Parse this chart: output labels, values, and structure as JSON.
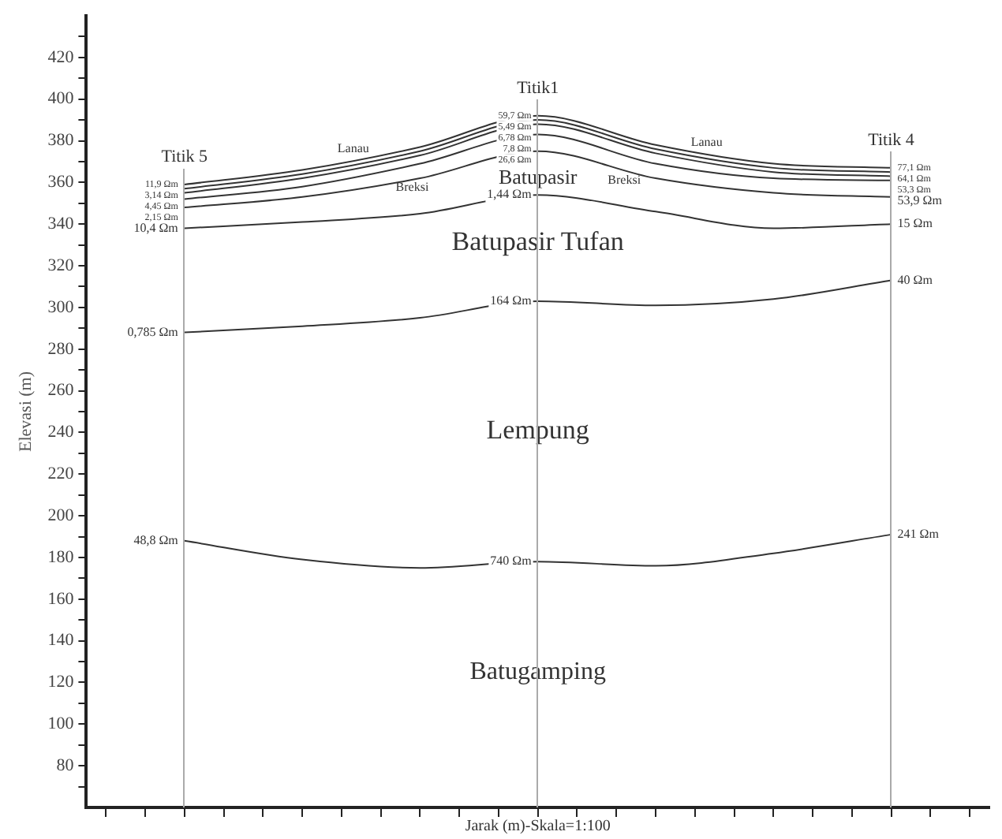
{
  "chart_data": {
    "type": "line",
    "xlabel": "Jarak (m)-Skala=1:100",
    "ylabel": "Elevasi (m)",
    "categories": [
      null,
      null,
      null,
      null,
      null,
      null,
      null,
      null,
      null,
      null,
      null,
      null,
      null,
      null,
      null,
      null,
      null,
      null,
      null,
      null,
      null,
      null,
      null
    ],
    "series": [
      {
        "color": "#333333",
        "values": [
          null,
          null,
          359,
          null,
          null,
          366,
          null,
          null,
          377,
          null,
          null,
          392,
          null,
          null,
          378,
          null,
          null,
          369,
          null,
          null,
          367,
          null,
          null
        ]
      },
      {
        "color": "#333333",
        "values": [
          null,
          null,
          357,
          null,
          null,
          364,
          null,
          null,
          375,
          null,
          null,
          390,
          null,
          null,
          376,
          null,
          null,
          367,
          null,
          null,
          365,
          null,
          null
        ]
      },
      {
        "color": "#333333",
        "values": [
          null,
          null,
          355,
          null,
          null,
          362,
          null,
          null,
          373,
          null,
          null,
          388,
          null,
          null,
          374,
          null,
          null,
          365,
          null,
          null,
          363,
          null,
          null
        ]
      },
      {
        "color": "#333333",
        "values": [
          null,
          null,
          352,
          null,
          null,
          358,
          null,
          null,
          369,
          null,
          null,
          383,
          null,
          null,
          369,
          null,
          null,
          362,
          null,
          null,
          361,
          null,
          null
        ]
      },
      {
        "color": "#333333",
        "values": [
          null,
          null,
          348,
          null,
          null,
          353,
          null,
          null,
          362,
          null,
          null,
          375,
          null,
          null,
          362,
          null,
          null,
          355,
          null,
          null,
          353,
          null,
          null
        ]
      },
      {
        "color": "#333333",
        "values": [
          null,
          null,
          338,
          null,
          null,
          341,
          null,
          null,
          345,
          null,
          null,
          354,
          null,
          null,
          346,
          null,
          null,
          338,
          null,
          null,
          340,
          null,
          null
        ]
      },
      {
        "color": "#333333",
        "values": [
          null,
          null,
          288,
          null,
          null,
          291,
          null,
          null,
          295,
          null,
          null,
          303,
          null,
          null,
          301,
          null,
          null,
          304,
          null,
          null,
          313,
          null,
          null
        ]
      },
      {
        "color": "#333333",
        "values": [
          null,
          null,
          188,
          null,
          null,
          179,
          null,
          null,
          175,
          null,
          null,
          178,
          null,
          null,
          176,
          null,
          null,
          182,
          null,
          null,
          191,
          null,
          null
        ]
      }
    ],
    "annotations": [
      "Titik 5",
      "Titik1",
      "Titik 4",
      "Lanau",
      "Breksi",
      "Lanau",
      "Breksi",
      "Batupasir",
      "Batupasir Tufan",
      "Lempung",
      "Batugamping",
      "11,9 Ωm",
      "3,14 Ωm",
      "4,45 Ωm",
      "2,15 Ωm",
      "10,4 Ωm",
      "0,785 Ωm",
      "48,8 Ωm",
      "59,7 Ωm",
      "5,49 Ωm",
      "6,78 Ωm",
      "7,8 Ωm",
      "26,6 Ωm",
      "1,44 Ωm",
      "164 Ωm",
      "740 Ωm",
      "77,1 Ωm",
      "64,1 Ωm",
      "53,3 Ωm",
      "53,9 Ωm",
      "15 Ωm",
      "40 Ωm",
      "241 Ωm"
    ],
    "ylim": [
      60,
      440
    ],
    "yticks": [
      {
        "value": 70,
        "label": null
      },
      80,
      {
        "value": 90,
        "label": null
      },
      100,
      {
        "value": 110,
        "label": null
      },
      120,
      {
        "value": 130,
        "label": null
      },
      140,
      {
        "value": 150,
        "label": null
      },
      160,
      {
        "value": 170,
        "label": null
      },
      180,
      {
        "value": 190,
        "label": null
      },
      200,
      {
        "value": 210,
        "label": null
      },
      220,
      {
        "value": 230,
        "label": null
      },
      240,
      {
        "value": 250,
        "label": null
      },
      260,
      {
        "value": 270,
        "label": null
      },
      280,
      {
        "value": 290,
        "label": null
      },
      300,
      {
        "value": 310,
        "label": null
      },
      320,
      {
        "value": 330,
        "label": null
      },
      340,
      {
        "value": 350,
        "label": null
      },
      360,
      {
        "value": 370,
        "label": null
      },
      380,
      {
        "value": 390,
        "label": null
      },
      400,
      {
        "value": 410,
        "label": null
      },
      420,
      {
        "value": 430,
        "label": null
      }
    ],
    "tick_labels": "y",
    "grid": false,
    "legend": false,
    "marker": "none",
    "line_style": "solid"
  }
}
